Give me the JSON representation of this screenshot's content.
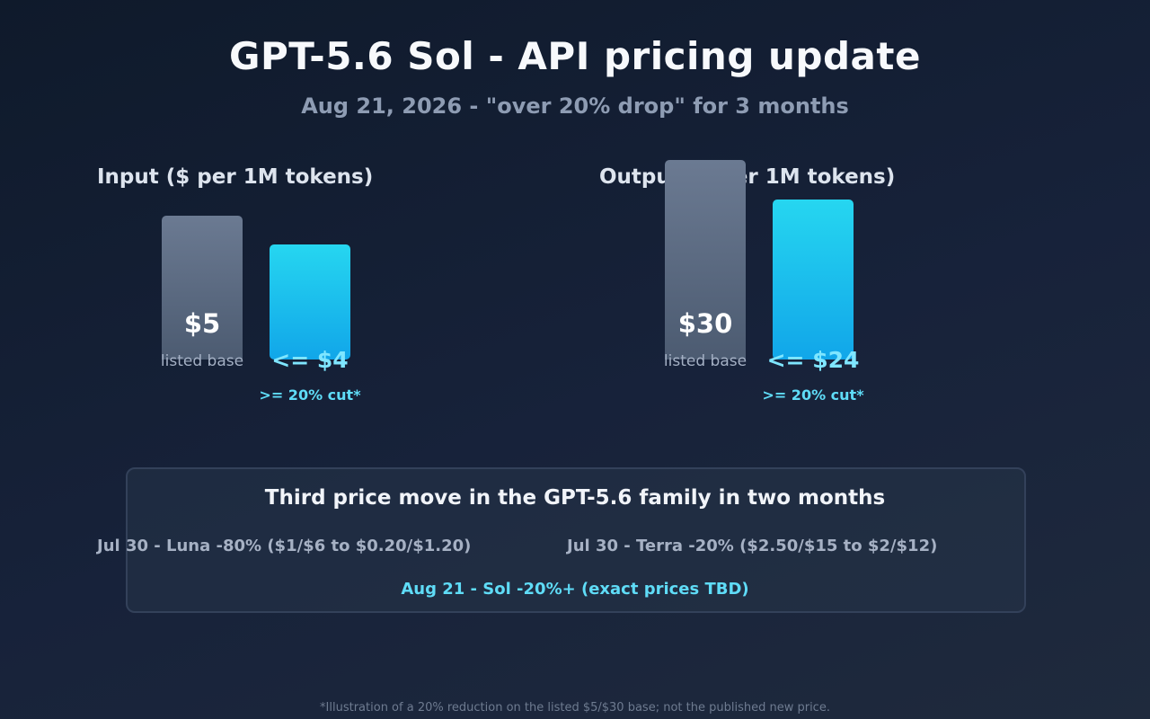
{
  "title": "GPT-5.6 Sol - API pricing update",
  "subtitle": "Aug 21, 2026 - \"over 20% drop\" for 3 months",
  "colors": {
    "base_bar": "#5d6c84",
    "cut_bar": "#1ab9ec",
    "accent": "#5fdcf7"
  },
  "chart_data": [
    {
      "type": "bar",
      "title": "Input ($ per 1M tokens)",
      "categories": [
        "listed base",
        ">= 20% cut*"
      ],
      "values": [
        5,
        4
      ],
      "value_labels": [
        "$5",
        "<= $4"
      ]
    },
    {
      "type": "bar",
      "title": "Output ($ per 1M tokens)",
      "categories": [
        "listed base",
        ">= 20% cut*"
      ],
      "values": [
        30,
        24
      ],
      "value_labels": [
        "$30",
        "<= $24"
      ]
    }
  ],
  "note": {
    "title": "Third price move in the GPT-5.6 family in two months",
    "items": [
      "Jul 30 - Luna -80% ($1/$6 to $0.20/$1.20)",
      "Jul 30 - Terra -20% ($2.50/$15 to $2/$12)",
      "Aug 21 - Sol -20%+ (exact prices TBD)"
    ]
  },
  "footnote": "*Illustration of a 20% reduction on the listed $5/$30 base; not the published new price."
}
